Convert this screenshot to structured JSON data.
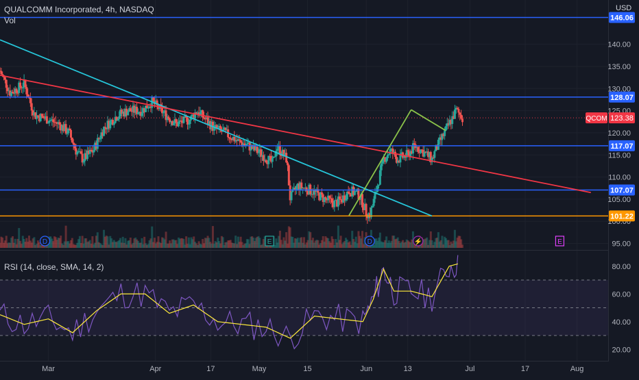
{
  "header": {
    "title": "QUALCOMM Incorporated, 4h, NASDAQ",
    "vol_label": "Vol",
    "currency": "USD"
  },
  "rsi": {
    "label": "RSI (14, close, SMA, 14, 2)",
    "levels": [
      80,
      60,
      40,
      20
    ],
    "level_labels": [
      "80.00",
      "60.00",
      "40.00",
      "20.00"
    ],
    "band": [
      30,
      70
    ],
    "mid": 50
  },
  "colors": {
    "background": "#151924",
    "up": "#26a69a",
    "down": "#ef5350",
    "horizontal_level": "#2962ff",
    "support_level": "#ff9800",
    "red_trendline": "#f23645",
    "cyan_trendline": "#26c6da",
    "green_trendline": "#8bc34a",
    "rsi_line": "#7e57c2",
    "rsi_sma": "#ffeb3b",
    "ticker_badge": "#f23645"
  },
  "chart_data": {
    "type": "candlestick",
    "symbol": "QCOM",
    "interval": "4h",
    "exchange": "NASDAQ",
    "title": "QUALCOMM Incorporated, 4h, NASDAQ",
    "ylim": [
      94,
      150
    ],
    "y_ticks": [
      95,
      100,
      105,
      110,
      115,
      120,
      125,
      130,
      135,
      140
    ],
    "y_tick_labels": [
      "95.00",
      "100.00",
      "105.00",
      "110.00",
      "115.00",
      "120.00",
      "125.00",
      "130.00",
      "135.00",
      "140.00"
    ],
    "x_tick_labels": [
      "Mar",
      "Apr",
      "17",
      "May",
      "15",
      "Jun",
      "13",
      "Jul",
      "17",
      "Aug"
    ],
    "x_tick_dates": [
      "2022-03-01",
      "2022-04-01",
      "2022-04-17",
      "2022-05-01",
      "2022-05-15",
      "2022-06-01",
      "2022-06-13",
      "2022-07-01",
      "2022-07-17",
      "2022-08-01"
    ],
    "last_price": 123.38,
    "last_price_label": "123.38",
    "ticker_label": "QCOM",
    "horizontal_levels": [
      {
        "value": 146.06,
        "label": "146.06",
        "color": "#2962ff"
      },
      {
        "value": 128.07,
        "label": "128.07",
        "color": "#2962ff"
      },
      {
        "value": 117.07,
        "label": "117.07",
        "color": "#2962ff"
      },
      {
        "value": 107.07,
        "label": "107.07",
        "color": "#2962ff"
      },
      {
        "value": 101.22,
        "label": "101.22",
        "color": "#ff9800"
      }
    ],
    "trendlines": [
      {
        "name": "cyan",
        "from": [
          "2022-02-15",
          141
        ],
        "to": [
          "2022-06-20",
          101.2
        ],
        "color": "#26c6da"
      },
      {
        "name": "red",
        "from": [
          "2022-02-15",
          133
        ],
        "to": [
          "2022-08-05",
          106.5
        ],
        "color": "#f23645"
      },
      {
        "name": "green-up",
        "from": [
          "2022-05-27",
          101.3
        ],
        "to": [
          "2022-06-14",
          125.2
        ],
        "color": "#8bc34a"
      },
      {
        "name": "green-down",
        "from": [
          "2022-06-14",
          125.2
        ],
        "to": [
          "2022-06-24",
          120.5
        ],
        "color": "#8bc34a"
      }
    ],
    "price_path": [
      [
        "2022-02-15",
        134
      ],
      [
        "2022-02-18",
        129
      ],
      [
        "2022-02-22",
        131
      ],
      [
        "2022-02-25",
        124
      ],
      [
        "2022-03-01",
        123
      ],
      [
        "2022-03-04",
        122
      ],
      [
        "2022-03-07",
        120
      ],
      [
        "2022-03-09",
        116
      ],
      [
        "2022-03-11",
        114
      ],
      [
        "2022-03-14",
        116
      ],
      [
        "2022-03-17",
        121
      ],
      [
        "2022-03-21",
        124
      ],
      [
        "2022-03-24",
        125
      ],
      [
        "2022-03-28",
        125
      ],
      [
        "2022-03-31",
        127
      ],
      [
        "2022-04-04",
        124
      ],
      [
        "2022-04-07",
        122
      ],
      [
        "2022-04-11",
        123
      ],
      [
        "2022-04-13",
        125
      ],
      [
        "2022-04-18",
        121
      ],
      [
        "2022-04-21",
        120
      ],
      [
        "2022-04-25",
        118
      ],
      [
        "2022-04-28",
        117
      ],
      [
        "2022-05-02",
        115
      ],
      [
        "2022-05-05",
        113
      ],
      [
        "2022-05-06",
        117
      ],
      [
        "2022-05-09",
        114
      ],
      [
        "2022-05-10",
        105
      ],
      [
        "2022-05-12",
        108
      ],
      [
        "2022-05-16",
        107
      ],
      [
        "2022-05-18",
        106
      ],
      [
        "2022-05-20",
        105
      ],
      [
        "2022-05-23",
        104
      ],
      [
        "2022-05-25",
        105
      ],
      [
        "2022-05-27",
        107
      ],
      [
        "2022-05-30",
        106
      ],
      [
        "2022-06-01",
        102
      ],
      [
        "2022-06-02",
        101.5
      ],
      [
        "2022-06-03",
        104
      ],
      [
        "2022-06-06",
        114
      ],
      [
        "2022-06-08",
        116
      ],
      [
        "2022-06-10",
        114
      ],
      [
        "2022-06-13",
        115
      ],
      [
        "2022-06-15",
        117
      ],
      [
        "2022-06-17",
        116
      ],
      [
        "2022-06-20",
        114
      ],
      [
        "2022-06-21",
        116
      ],
      [
        "2022-06-23",
        119
      ],
      [
        "2022-06-25",
        122
      ],
      [
        "2022-06-27",
        125
      ],
      [
        "2022-06-29",
        123.4
      ]
    ],
    "event_markers": [
      {
        "date": "2022-02-28",
        "label": "D",
        "kind": "dividend"
      },
      {
        "date": "2022-05-04",
        "label": "E",
        "kind": "earnings"
      },
      {
        "date": "2022-06-02",
        "label": "D",
        "kind": "dividend"
      },
      {
        "date": "2022-06-16",
        "label": "⚡",
        "kind": "split"
      },
      {
        "date": "2022-07-27",
        "label": "E",
        "kind": "earnings-upcoming"
      }
    ],
    "rsi_values": [
      [
        "2022-02-15",
        45
      ],
      [
        "2022-02-22",
        38
      ],
      [
        "2022-03-01",
        42
      ],
      [
        "2022-03-08",
        32
      ],
      [
        "2022-03-15",
        48
      ],
      [
        "2022-03-22",
        60
      ],
      [
        "2022-03-29",
        60
      ],
      [
        "2022-04-05",
        46
      ],
      [
        "2022-04-12",
        52
      ],
      [
        "2022-04-19",
        40
      ],
      [
        "2022-04-26",
        38
      ],
      [
        "2022-05-03",
        36
      ],
      [
        "2022-05-10",
        28
      ],
      [
        "2022-05-17",
        44
      ],
      [
        "2022-05-24",
        42
      ],
      [
        "2022-05-31",
        40
      ],
      [
        "2022-06-03",
        56
      ],
      [
        "2022-06-06",
        78
      ],
      [
        "2022-06-09",
        62
      ],
      [
        "2022-06-14",
        62
      ],
      [
        "2022-06-20",
        58
      ],
      [
        "2022-06-25",
        80
      ],
      [
        "2022-06-28",
        82
      ]
    ]
  }
}
